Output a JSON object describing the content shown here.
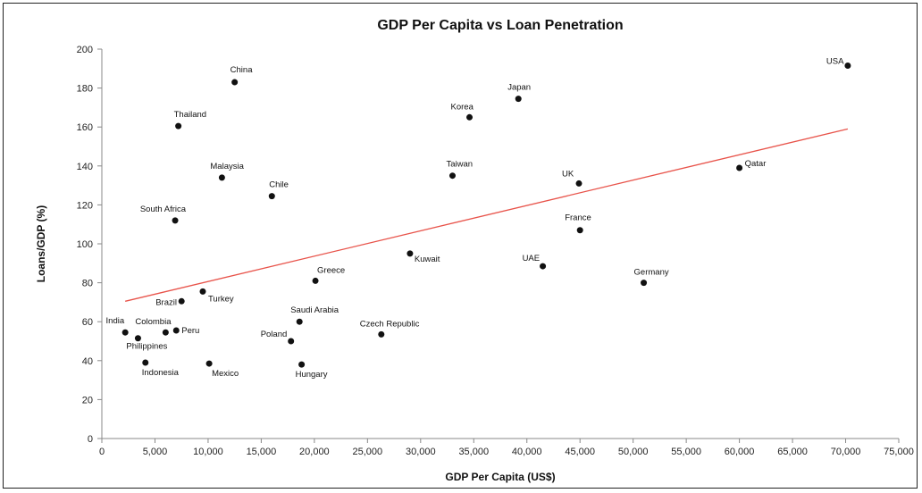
{
  "chart_data": {
    "type": "scatter",
    "title": "GDP Per Capita vs Loan Penetration",
    "xlabel": "GDP Per Capita (US$)",
    "ylabel": "Loans/GDP (%)",
    "xlim": [
      0,
      75000
    ],
    "ylim": [
      0,
      200
    ],
    "xticks": [
      0,
      5000,
      10000,
      15000,
      20000,
      25000,
      30000,
      35000,
      40000,
      45000,
      50000,
      55000,
      60000,
      65000,
      70000,
      75000
    ],
    "xtick_labels": [
      "0",
      "5,000",
      "10,000",
      "15,000",
      "20,000",
      "25,000",
      "30,000",
      "35,000",
      "40,000",
      "45,000",
      "50,000",
      "55,000",
      "60,000",
      "65,000",
      "70,000",
      "75,000"
    ],
    "yticks": [
      0,
      20,
      40,
      60,
      80,
      100,
      120,
      140,
      160,
      180,
      200
    ],
    "ytick_labels": [
      "0",
      "20",
      "40",
      "60",
      "80",
      "100",
      "120",
      "140",
      "160",
      "180",
      "200"
    ],
    "grid": false,
    "marker_color": "#111111",
    "trendline": {
      "x": [
        2200,
        70200
      ],
      "y": [
        70.5,
        159
      ],
      "color": "#e8534a"
    },
    "points": [
      {
        "label": "India",
        "x": 2200,
        "y": 54.5
      },
      {
        "label": "Philippines",
        "x": 3400,
        "y": 51.5
      },
      {
        "label": "Indonesia",
        "x": 4100,
        "y": 39
      },
      {
        "label": "Colombia",
        "x": 6000,
        "y": 54.5
      },
      {
        "label": "Peru",
        "x": 7000,
        "y": 55.5
      },
      {
        "label": "South Africa",
        "x": 6900,
        "y": 112
      },
      {
        "label": "Thailand",
        "x": 7200,
        "y": 160.5
      },
      {
        "label": "Brazil",
        "x": 7500,
        "y": 70.5
      },
      {
        "label": "Turkey",
        "x": 9500,
        "y": 75.5
      },
      {
        "label": "Mexico",
        "x": 10100,
        "y": 38.5
      },
      {
        "label": "Malaysia",
        "x": 11300,
        "y": 134
      },
      {
        "label": "China",
        "x": 12500,
        "y": 183
      },
      {
        "label": "Chile",
        "x": 16000,
        "y": 124.5
      },
      {
        "label": "Poland",
        "x": 17800,
        "y": 50
      },
      {
        "label": "Saudi Arabia",
        "x": 18600,
        "y": 60
      },
      {
        "label": "Hungary",
        "x": 18800,
        "y": 38
      },
      {
        "label": "Greece",
        "x": 20100,
        "y": 81
      },
      {
        "label": "Czech Republic",
        "x": 26300,
        "y": 53.5
      },
      {
        "label": "Kuwait",
        "x": 29000,
        "y": 95
      },
      {
        "label": "Taiwan",
        "x": 33000,
        "y": 135
      },
      {
        "label": "Korea",
        "x": 34600,
        "y": 165
      },
      {
        "label": "Japan",
        "x": 39200,
        "y": 174.5
      },
      {
        "label": "UAE",
        "x": 41500,
        "y": 88.5
      },
      {
        "label": "UK",
        "x": 44900,
        "y": 131
      },
      {
        "label": "France",
        "x": 45000,
        "y": 107
      },
      {
        "label": "Germany",
        "x": 51000,
        "y": 80
      },
      {
        "label": "Qatar",
        "x": 60000,
        "y": 139
      },
      {
        "label": "USA",
        "x": 70200,
        "y": 191.5
      }
    ]
  }
}
